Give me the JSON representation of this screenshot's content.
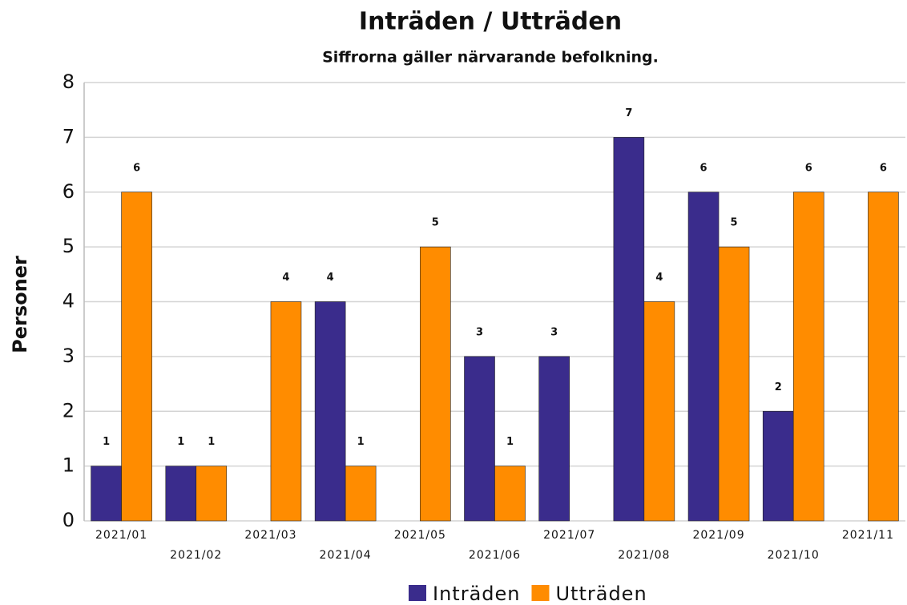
{
  "chart_data": {
    "type": "bar",
    "title": "Inträden   / Utträden",
    "subtitle": "Siffrorna gäller närvarande befolkning.",
    "y_label": "Personer",
    "categories": [
      "2021/01",
      "2021/02",
      "2021/03",
      "2021/04",
      "2021/05",
      "2021/06",
      "2021/07",
      "2021/08",
      "2021/09",
      "2021/10",
      "2021/11"
    ],
    "series": [
      {
        "name": "Inträden",
        "color": "#3a2c8c",
        "values": [
          1,
          1,
          null,
          4,
          null,
          3,
          3,
          7,
          6,
          2,
          null
        ]
      },
      {
        "name": "Utträden",
        "color": "#ff8c00",
        "values": [
          6,
          1,
          4,
          1,
          5,
          1,
          null,
          4,
          5,
          6,
          6
        ]
      }
    ],
    "ylim": [
      0,
      8
    ],
    "yticks": [
      0,
      1,
      2,
      3,
      4,
      5,
      6,
      7,
      8
    ],
    "grid": true,
    "legend": "bottom"
  }
}
